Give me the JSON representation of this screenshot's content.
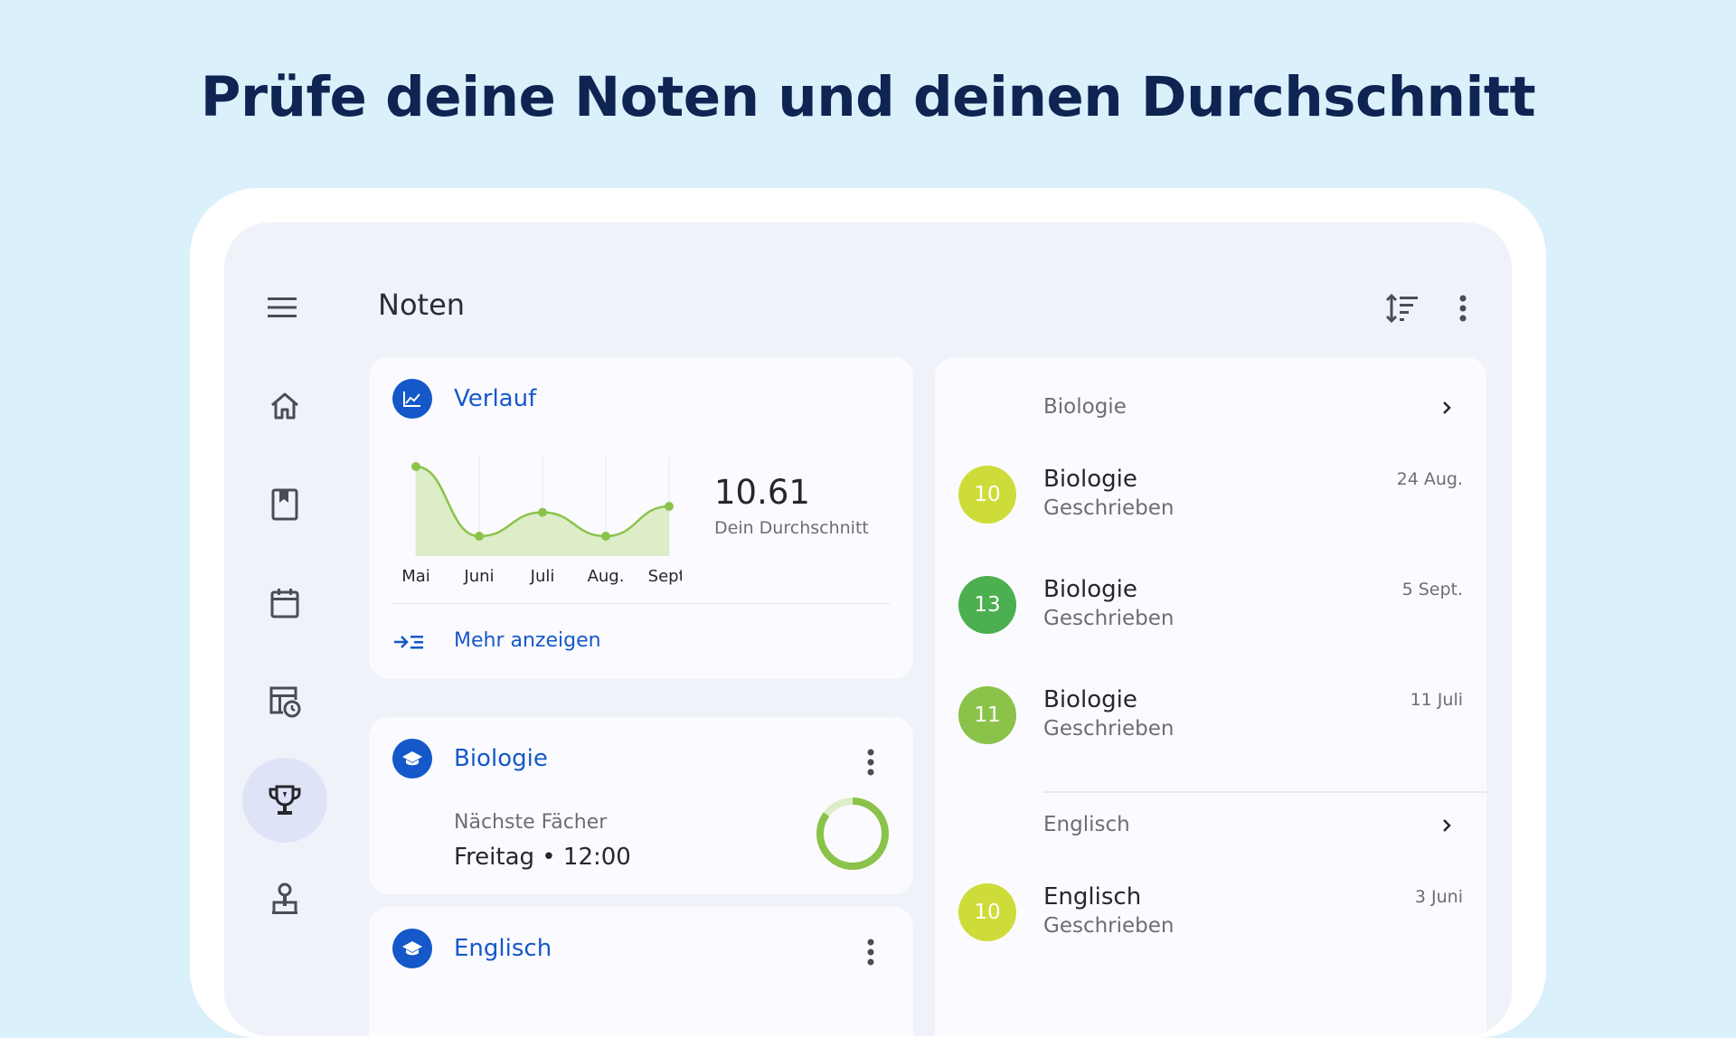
{
  "headline": "Prüfe deine Noten und deinen Durchschnitt",
  "appbar": {
    "title": "Noten",
    "icons": [
      "menu-icon",
      "sort-icon",
      "more-vert-icon"
    ]
  },
  "rail": {
    "items": [
      {
        "name": "home",
        "icon": "home-icon"
      },
      {
        "name": "subjects",
        "icon": "bookmark-book-icon"
      },
      {
        "name": "calendar",
        "icon": "calendar-icon"
      },
      {
        "name": "timetable",
        "icon": "schedule-table-icon"
      },
      {
        "name": "grades",
        "icon": "trophy-icon",
        "active": true
      },
      {
        "name": "teachers",
        "icon": "teacher-icon"
      }
    ]
  },
  "verlauf": {
    "title": "Verlauf",
    "average": "10.61",
    "average_label": "Dein Durchschnitt",
    "more_label": "Mehr anzeigen"
  },
  "chart_data": {
    "type": "area",
    "categories": [
      "Mai",
      "Juni",
      "Juli",
      "Aug.",
      "Sept."
    ],
    "values": [
      13.5,
      10.0,
      11.2,
      10.0,
      11.5
    ],
    "ylim": [
      9,
      14
    ],
    "color": "#8bc34a",
    "fill": "#dcedc8",
    "grid": "vertical"
  },
  "subject_cards": [
    {
      "title": "Biologie",
      "next_label": "Nächste Fächer",
      "next_value": "Freitag • 12:00",
      "progress": 0.85
    },
    {
      "title": "Englisch"
    }
  ],
  "grades": {
    "groups": [
      {
        "header": "Biologie",
        "items": [
          {
            "grade": "10",
            "subject": "Biologie",
            "type": "Geschrieben",
            "date": "24 Aug.",
            "color": "#cddc39"
          },
          {
            "grade": "13",
            "subject": "Biologie",
            "type": "Geschrieben",
            "date": "5 Sept.",
            "color": "#4caf50"
          },
          {
            "grade": "11",
            "subject": "Biologie",
            "type": "Geschrieben",
            "date": "11 Juli",
            "color": "#8bc34a"
          }
        ]
      },
      {
        "header": "Englisch",
        "items": [
          {
            "grade": "10",
            "subject": "Englisch",
            "type": "Geschrieben",
            "date": "3 Juni",
            "color": "#cddc39"
          }
        ]
      }
    ]
  }
}
